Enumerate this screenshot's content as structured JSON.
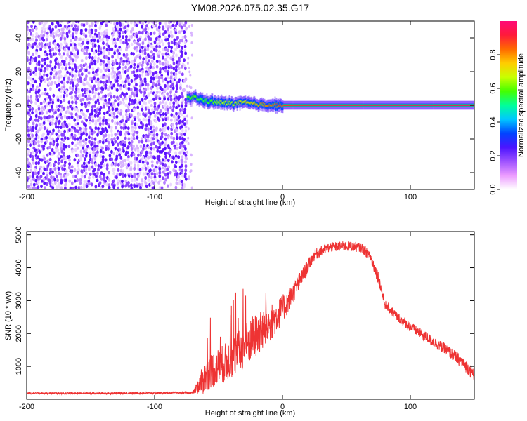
{
  "title": "YM08.2026.075.02.35.G17",
  "chart_data": [
    {
      "type": "heatmap",
      "panel": "top",
      "title": "YM08.2026.075.02.35.G17",
      "xlabel": "Height of straight line (km)",
      "ylabel": "Frequency (Hz)",
      "xlim": [
        -200,
        150
      ],
      "ylim": [
        -50,
        50
      ],
      "x_ticks": [
        -200,
        -100,
        0,
        100
      ],
      "y_ticks": [
        -40,
        -20,
        0,
        20,
        40
      ],
      "colorbar": {
        "label": "Normalized spectral amplitude",
        "range": [
          0,
          1
        ],
        "ticks": [
          "0.0",
          "0.2",
          "0.4",
          "0.6",
          "0.8"
        ],
        "colors": [
          "#ffffff",
          "#ec9bff",
          "#9d52ff",
          "#4b14ff",
          "#0044ff",
          "#00c8ff",
          "#00ff9a",
          "#44ff00",
          "#c8ff00",
          "#ffcc00",
          "#ff6a00",
          "#ff1a3a",
          "#ff0a78"
        ]
      },
      "noise_region_x": [
        -200,
        -75
      ],
      "carrier_line": [
        {
          "x": -75,
          "freq": 4.0,
          "amp": 0.55
        },
        {
          "x": -70,
          "freq": 5.0,
          "amp": 0.6
        },
        {
          "x": -65,
          "freq": 3.5,
          "amp": 0.55
        },
        {
          "x": -60,
          "freq": 2.5,
          "amp": 0.55
        },
        {
          "x": -50,
          "freq": 1.5,
          "amp": 0.65
        },
        {
          "x": -40,
          "freq": 1.0,
          "amp": 0.7
        },
        {
          "x": -30,
          "freq": 1.5,
          "amp": 0.75
        },
        {
          "x": -20,
          "freq": 0.5,
          "amp": 0.8
        },
        {
          "x": 0,
          "freq": 0.0,
          "amp": 0.9
        },
        {
          "x": 50,
          "freq": 0.0,
          "amp": 0.95
        },
        {
          "x": 100,
          "freq": 0.0,
          "amp": 0.95
        },
        {
          "x": 150,
          "freq": 0.0,
          "amp": 0.95
        }
      ]
    },
    {
      "type": "line",
      "panel": "bottom",
      "xlabel": "Height of straight line (km)",
      "ylabel": "SNR (10 * v/v)",
      "xlim": [
        -200,
        150
      ],
      "ylim": [
        0,
        5100
      ],
      "x_ticks": [
        -200,
        -100,
        0,
        100
      ],
      "y_ticks": [
        1000,
        2000,
        3000,
        4000,
        5000
      ],
      "series": [
        {
          "name": "SNR",
          "color": "#ee3333",
          "x": [
            -200,
            -150,
            -100,
            -70,
            -62,
            -55,
            -45,
            -35,
            -25,
            -15,
            -5,
            5,
            15,
            25,
            35,
            45,
            55,
            62,
            68,
            75,
            80,
            90,
            100,
            110,
            120,
            130,
            140,
            150
          ],
          "mean": [
            180,
            180,
            190,
            200,
            600,
            900,
            1100,
            1400,
            1800,
            2100,
            2500,
            3000,
            3700,
            4400,
            4600,
            4650,
            4650,
            4600,
            4400,
            3700,
            2900,
            2500,
            2200,
            1950,
            1700,
            1450,
            1150,
            750
          ],
          "spread": [
            60,
            60,
            60,
            60,
            900,
            1100,
            1200,
            1300,
            1400,
            1300,
            1000,
            700,
            500,
            350,
            300,
            300,
            300,
            300,
            350,
            400,
            300,
            300,
            300,
            320,
            330,
            350,
            380,
            420
          ]
        }
      ]
    }
  ]
}
